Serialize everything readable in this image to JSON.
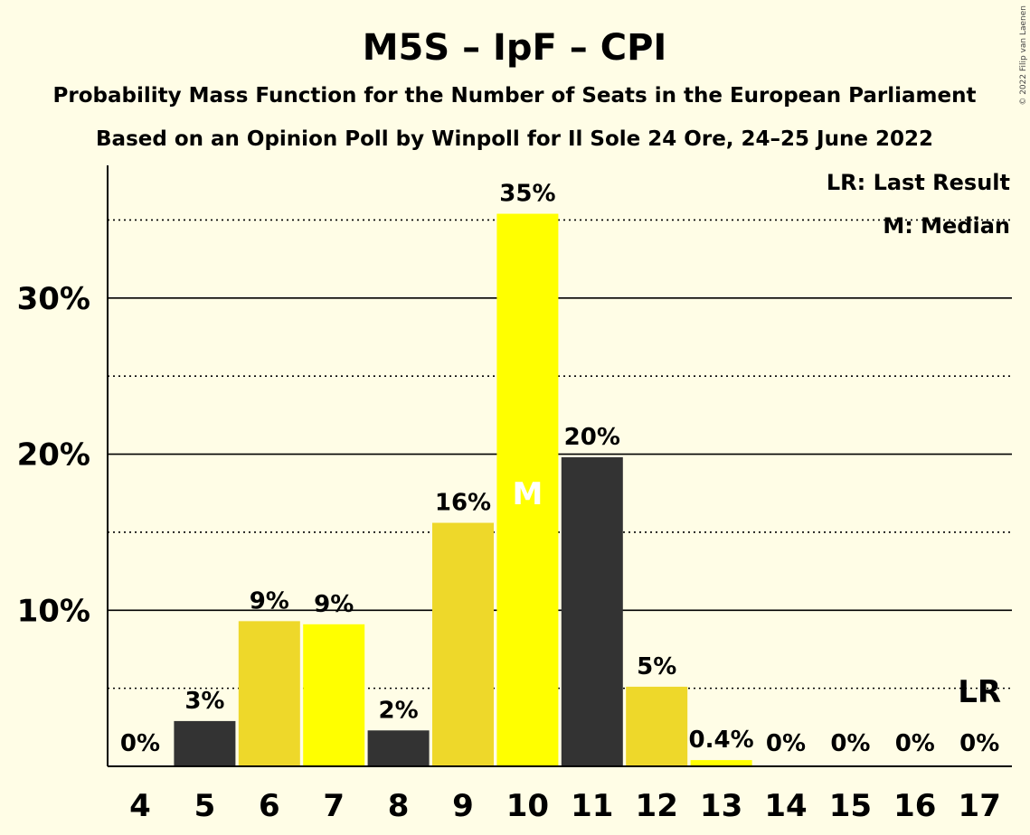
{
  "header": {
    "title": "M5S – IpF – CPI",
    "subtitle1": "Probability Mass Function for the Number of Seats in the European Parliament",
    "subtitle2": "Based on an Opinion Poll by Winpoll for Il Sole 24 Ore, 24–25 June 2022"
  },
  "legend": {
    "last_result": "LR: Last Result",
    "median": "M: Median"
  },
  "copyright": "© 2022 Filip van Laenen",
  "chart_data": {
    "type": "bar",
    "categories": [
      "4",
      "5",
      "6",
      "7",
      "8",
      "9",
      "10",
      "11",
      "12",
      "13",
      "14",
      "15",
      "16",
      "17"
    ],
    "values": [
      0,
      2.9,
      9.3,
      9.1,
      2.3,
      15.6,
      35.4,
      19.8,
      5.1,
      0.4,
      0,
      0,
      0,
      0
    ],
    "value_labels": [
      "0%",
      "3%",
      "9%",
      "9%",
      "2%",
      "16%",
      "35%",
      "20%",
      "5%",
      "0.4%",
      "0%",
      "0%",
      "0%",
      "0%"
    ],
    "bar_colors": [
      "#333333",
      "#333333",
      "#eed82a",
      "#ffff00",
      "#333333",
      "#eed82a",
      "#ffff00",
      "#333333",
      "#eed82a",
      "#ffff00",
      "#333333",
      "#eed82a",
      "#ffff00",
      "#333333"
    ],
    "ylim": [
      0,
      38.5
    ],
    "y_ticks": [
      10,
      20,
      30
    ],
    "y_tick_labels": [
      "10%",
      "20%",
      "30%"
    ],
    "minor_gridlines": [
      5,
      15,
      25,
      35
    ],
    "median_category": "10",
    "median_marker": "M",
    "last_result_category": "17",
    "last_result_marker": "LR",
    "legend_position": "top-right",
    "xlabel": "",
    "ylabel": ""
  }
}
